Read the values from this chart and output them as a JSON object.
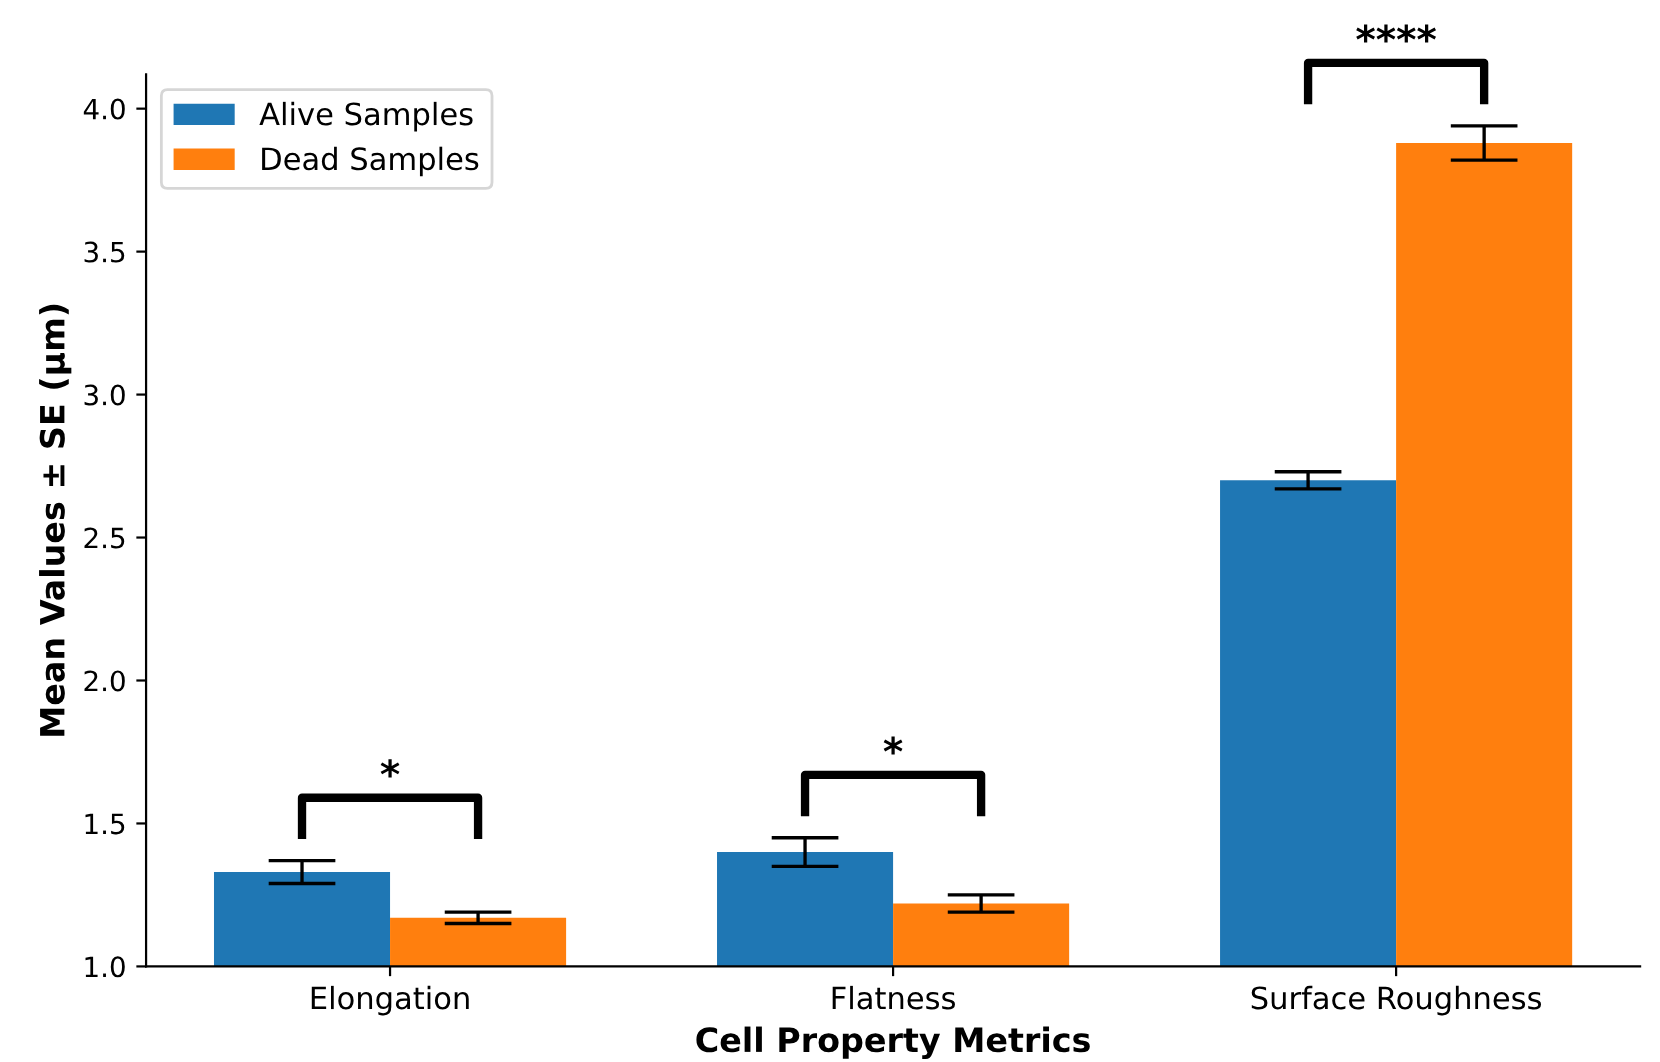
{
  "chart_data": {
    "type": "bar",
    "xlabel": "Cell Property Metrics",
    "ylabel": "Mean Values ± SE (µm)",
    "categories": [
      "Elongation",
      "Flatness",
      "Surface Roughness"
    ],
    "series": [
      {
        "name": "Alive Samples",
        "color": "#1f77b4",
        "values": [
          1.33,
          1.4,
          2.7
        ],
        "errors": [
          0.04,
          0.05,
          0.03
        ]
      },
      {
        "name": "Dead Samples",
        "color": "#ff7f0e",
        "values": [
          1.17,
          1.22,
          3.88
        ],
        "errors": [
          0.02,
          0.03,
          0.06
        ]
      }
    ],
    "ylim": [
      1.0,
      4.12
    ],
    "yticks": [
      {
        "value": 1.0,
        "label": "1.0"
      },
      {
        "value": 1.5,
        "label": "1.5"
      },
      {
        "value": 2.0,
        "label": "2.0"
      },
      {
        "value": 2.5,
        "label": "2.5"
      },
      {
        "value": 3.0,
        "label": "3.0"
      },
      {
        "value": 3.5,
        "label": "3.5"
      },
      {
        "value": 4.0,
        "label": "4.0"
      }
    ],
    "annotations": [
      "*",
      "*",
      "****"
    ],
    "legend": "top left",
    "grid": false
  }
}
